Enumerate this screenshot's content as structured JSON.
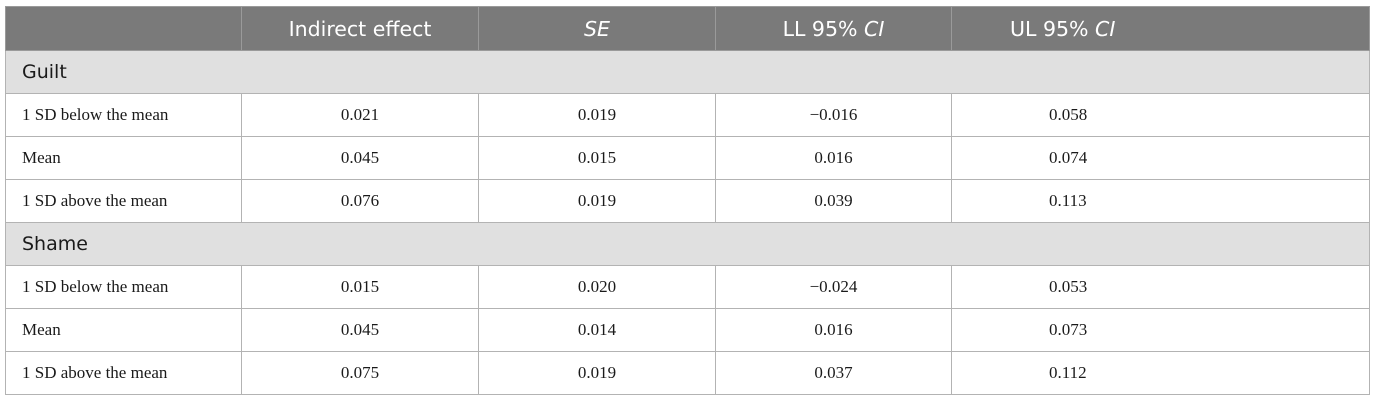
{
  "table": {
    "headers": {
      "col0": "",
      "col1": "Indirect effect",
      "col2_italic": "SE",
      "col3_prefix": "LL 95% ",
      "col3_italic": "CI",
      "col4_prefix": "UL 95% ",
      "col4_italic": "CI"
    },
    "groups": [
      {
        "label": "Guilt",
        "rows": [
          {
            "label": "1 SD below the mean",
            "indirect": "0.021",
            "se": "0.019",
            "ll": "−0.016",
            "ul": "0.058"
          },
          {
            "label": "Mean",
            "indirect": "0.045",
            "se": "0.015",
            "ll": "0.016",
            "ul": "0.074"
          },
          {
            "label": "1 SD above the mean",
            "indirect": "0.076",
            "se": "0.019",
            "ll": "0.039",
            "ul": "0.113"
          }
        ]
      },
      {
        "label": "Shame",
        "rows": [
          {
            "label": "1 SD below the mean",
            "indirect": "0.015",
            "se": "0.020",
            "ll": "−0.024",
            "ul": "0.053"
          },
          {
            "label": "Mean",
            "indirect": "0.045",
            "se": "0.014",
            "ll": "0.016",
            "ul": "0.073"
          },
          {
            "label": "1 SD above the mean",
            "indirect": "0.075",
            "se": "0.019",
            "ll": "0.037",
            "ul": "0.112"
          }
        ]
      }
    ]
  }
}
